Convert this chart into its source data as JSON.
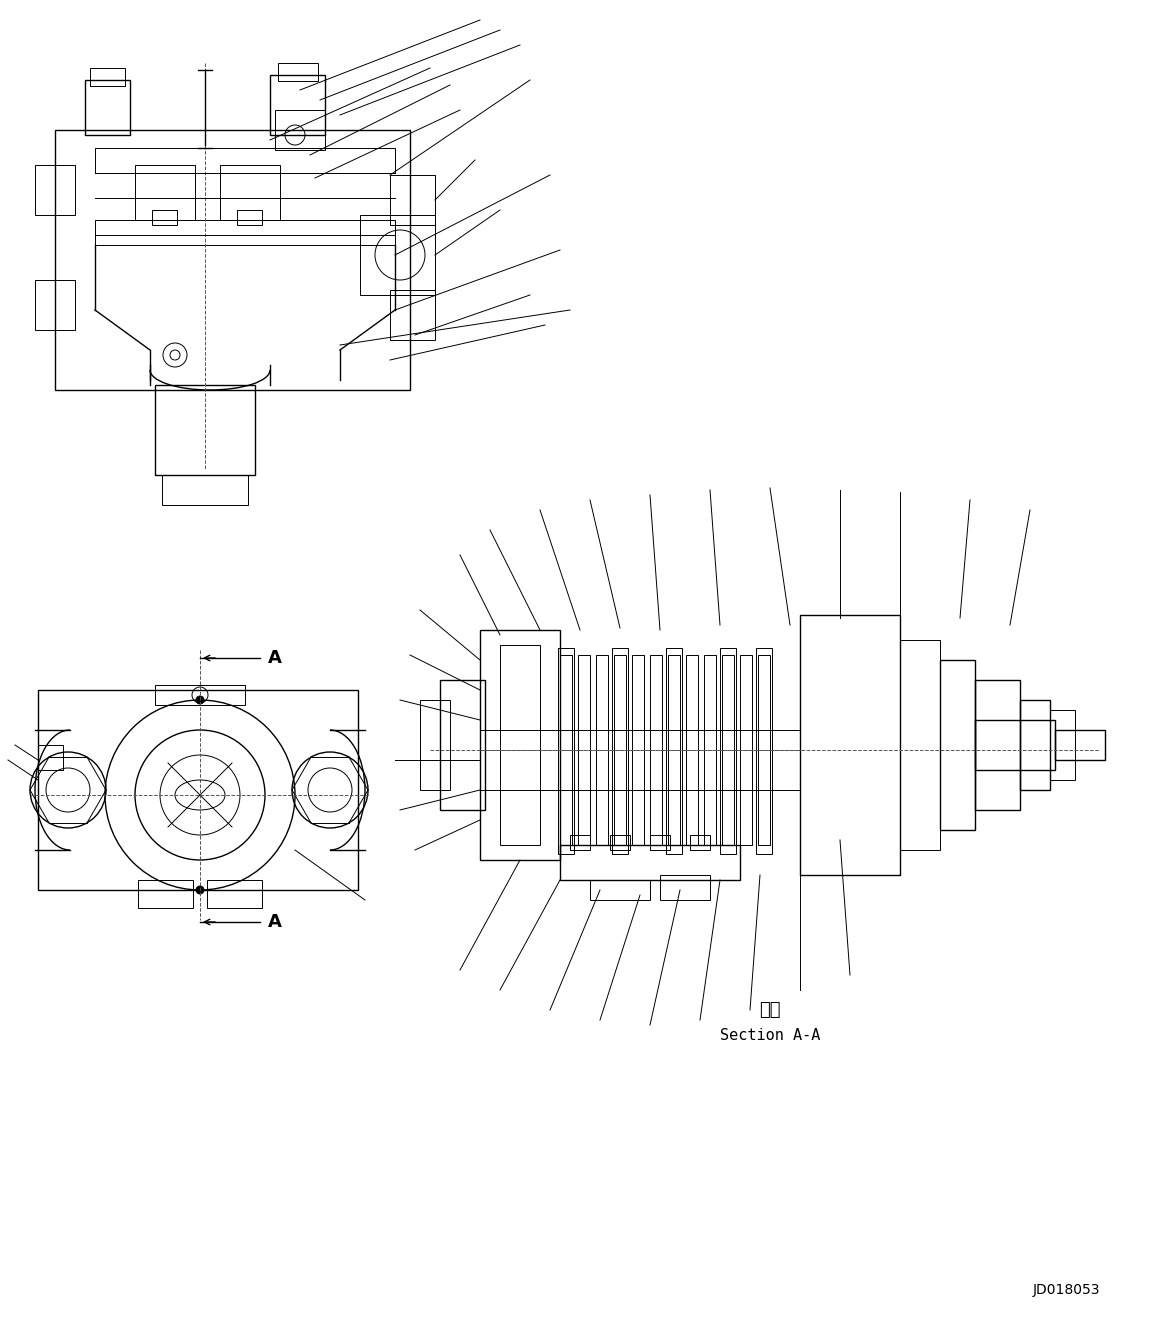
{
  "bg_color": "#ffffff",
  "line_color": "#000000",
  "fig_width": 11.63,
  "fig_height": 13.38,
  "dpi": 100,
  "section_label_chinese": "断面",
  "section_label_english": "Section A-A",
  "part_id": "JD018053"
}
